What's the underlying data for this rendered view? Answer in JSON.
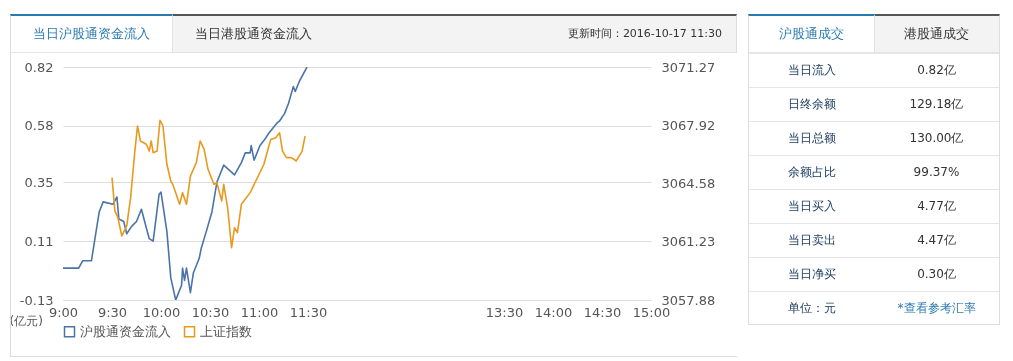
{
  "chart_data": [
    {
      "type": "line",
      "title": "当日沪股通资金流入",
      "annotations": [
        "当日港股通资金流入",
        "更新时间：2016-10-17 11:30"
      ],
      "ylabel": "(亿元)",
      "xlim": [
        9,
        15
      ],
      "xticks": [
        {
          "value": 9,
          "label": "9:00"
        },
        {
          "value": 9.5,
          "label": "9:30"
        },
        {
          "value": 10,
          "label": "10:00"
        },
        {
          "value": 10.5,
          "label": "10:30"
        },
        {
          "value": 11,
          "label": "11:00"
        },
        {
          "value": 11.5,
          "label": "11:30"
        },
        {
          "value": 13.5,
          "label": "13:30"
        },
        {
          "value": 14,
          "label": "14:00"
        },
        {
          "value": 14.5,
          "label": "14:30"
        },
        {
          "value": 15,
          "label": "15:00"
        }
      ],
      "ylim": [
        -0.13,
        0.82
      ],
      "yticks": [
        -0.13,
        0.11,
        0.35,
        0.58,
        0.82
      ],
      "y2lim": [
        3057.88,
        3071.27
      ],
      "y2ticks": [
        3057.88,
        3061.23,
        3064.58,
        3067.92,
        3071.27
      ],
      "grid": "y",
      "legend": "bottom",
      "series": [
        {
          "name": "沪股通资金流入",
          "color": "#4a74a8",
          "x": [
            9.0,
            9.16,
            9.2,
            9.29,
            9.37,
            9.41,
            9.51,
            9.55,
            9.57,
            9.62,
            9.65,
            9.7,
            9.75,
            9.8,
            9.88,
            9.92,
            9.98,
            10.0,
            10.06,
            10.1,
            10.15,
            10.17,
            10.21,
            10.22,
            10.24,
            10.26,
            10.3,
            10.33,
            10.39,
            10.41,
            10.47,
            10.52,
            10.57,
            10.64,
            10.75,
            10.82,
            10.86,
            10.91,
            10.92,
            10.95,
            11.01,
            11.05,
            11.1,
            11.18,
            11.21,
            11.26,
            11.3,
            11.35,
            11.37,
            11.41,
            11.49
          ],
          "values": [
            0.0,
            0.0,
            0.03,
            0.03,
            0.23,
            0.27,
            0.26,
            0.29,
            0.2,
            0.19,
            0.14,
            0.17,
            0.19,
            0.24,
            0.12,
            0.11,
            0.3,
            0.31,
            0.15,
            -0.04,
            -0.13,
            -0.11,
            -0.07,
            0.0,
            -0.05,
            0.0,
            -0.1,
            -0.02,
            0.04,
            0.08,
            0.16,
            0.23,
            0.35,
            0.42,
            0.38,
            0.43,
            0.47,
            0.47,
            0.5,
            0.44,
            0.5,
            0.52,
            0.55,
            0.59,
            0.6,
            0.63,
            0.67,
            0.74,
            0.72,
            0.76,
            0.82
          ]
        },
        {
          "name": "上证指数",
          "color": "#e89a1e",
          "axis": "y2",
          "x": [
            9.5,
            9.53,
            9.56,
            9.6,
            9.65,
            9.69,
            9.73,
            9.76,
            9.79,
            9.85,
            9.88,
            9.9,
            9.92,
            9.96,
            9.99,
            10.02,
            10.06,
            10.1,
            10.12,
            10.19,
            10.22,
            10.26,
            10.3,
            10.36,
            10.4,
            10.44,
            10.48,
            10.54,
            10.57,
            10.62,
            10.64,
            10.68,
            10.72,
            10.75,
            10.78,
            10.82,
            10.91,
            11.05,
            11.12,
            11.17,
            11.21,
            11.24,
            11.28,
            11.33,
            11.38,
            11.44,
            11.47
          ],
          "values": [
            3064.91,
            3062.99,
            3062.61,
            3061.56,
            3062.13,
            3063.76,
            3066.25,
            3067.88,
            3067.02,
            3066.83,
            3066.44,
            3067.02,
            3066.34,
            3066.44,
            3068.21,
            3067.88,
            3065.68,
            3064.72,
            3064.53,
            3063.38,
            3064.05,
            3063.38,
            3065.0,
            3065.77,
            3067.02,
            3066.54,
            3065.39,
            3064.53,
            3064.62,
            3063.57,
            3064.53,
            3063.18,
            3060.88,
            3062.03,
            3061.75,
            3063.38,
            3064.05,
            3065.68,
            3067.11,
            3067.21,
            3067.49,
            3066.44,
            3066.06,
            3066.06,
            3065.87,
            3066.44,
            3067.3
          ]
        }
      ]
    },
    {
      "type": "other",
      "title": "沪股通成交",
      "annotations": [
        "港股通成交",
        "当日流入",
        "0.82亿",
        "日终余额",
        "129.18亿",
        "当日总额",
        "130.00亿",
        "余额占比",
        "99.37%",
        "当日买入",
        "4.77亿",
        "当日卖出",
        "4.47亿",
        "当日净买",
        "0.30亿",
        "单位：元",
        "*查看参考汇率"
      ]
    }
  ]
}
